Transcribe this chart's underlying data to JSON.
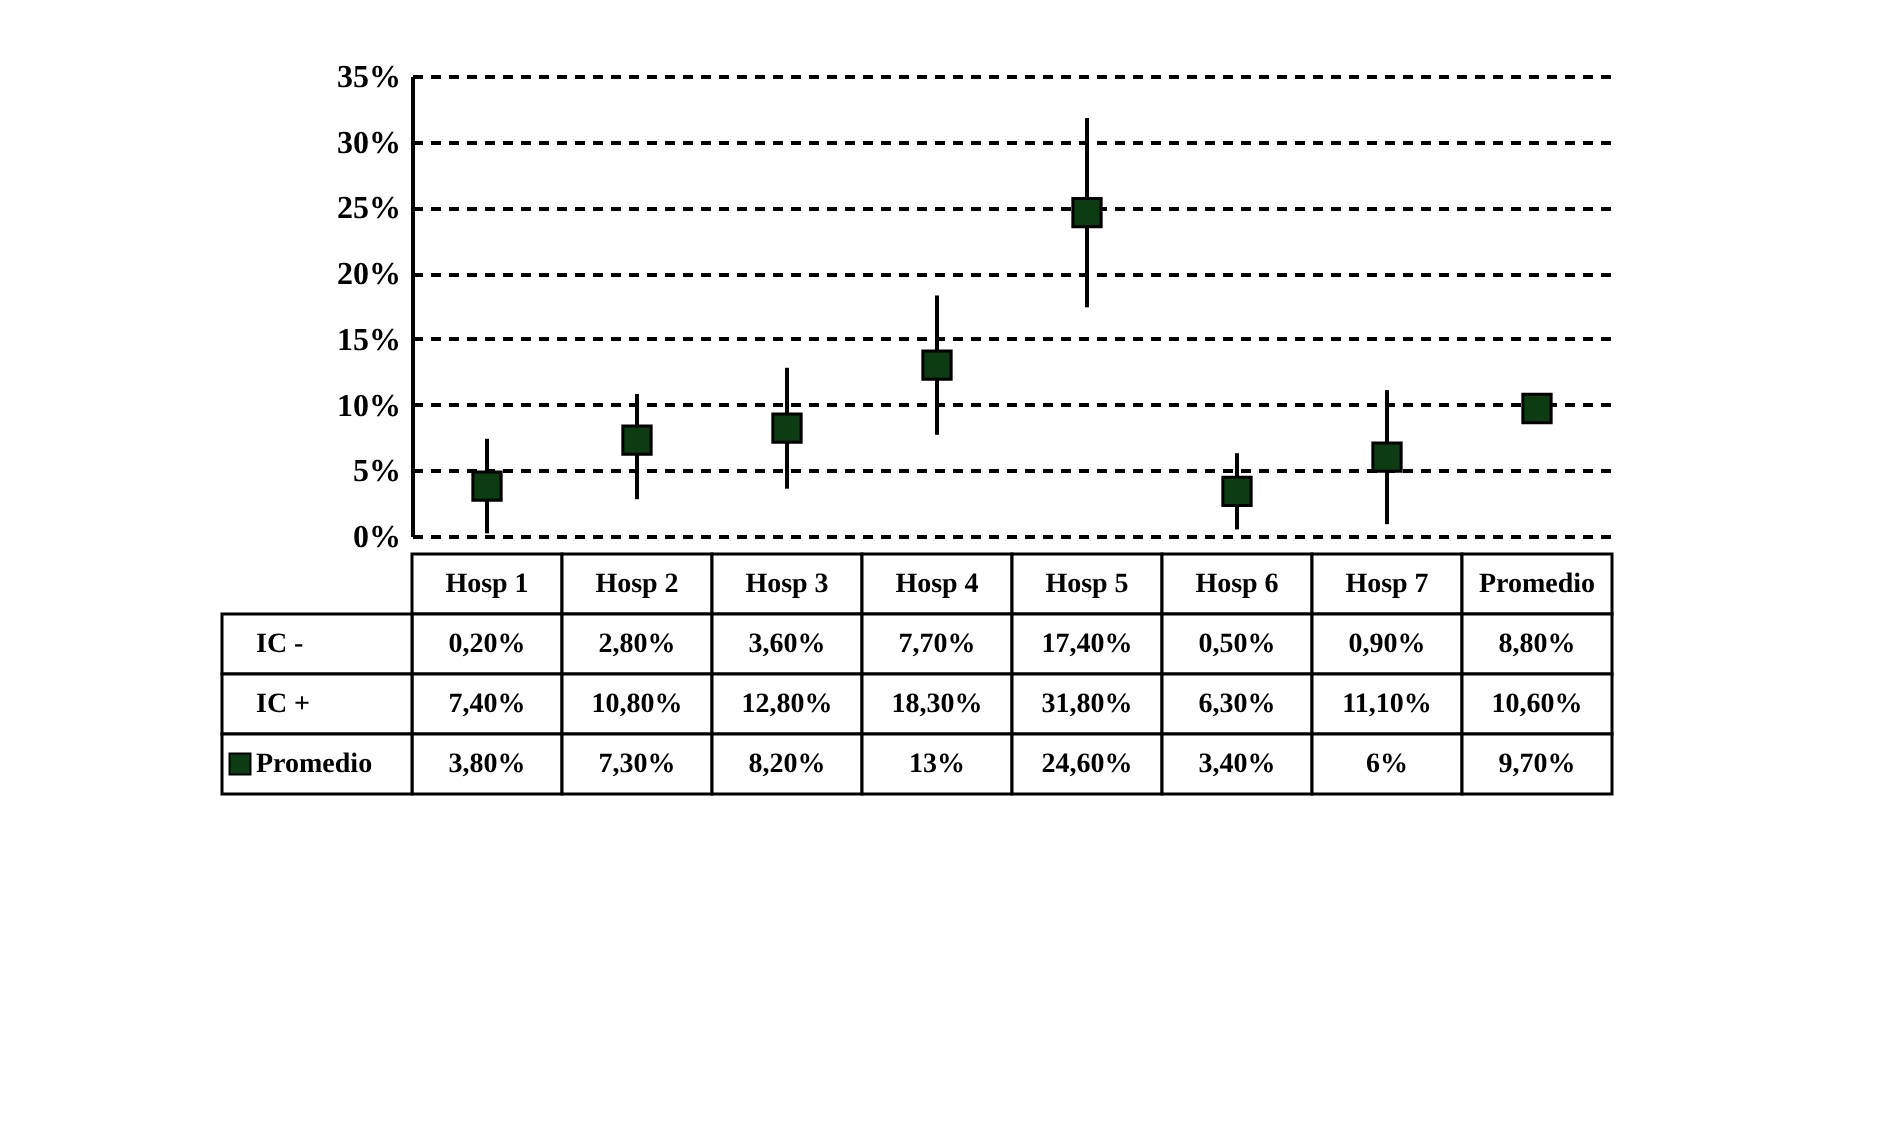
{
  "chart_data": {
    "type": "scatter",
    "categories": [
      "Hosp 1",
      "Hosp 2",
      "Hosp 3",
      "Hosp 4",
      "Hosp 5",
      "Hosp 6",
      "Hosp 7",
      "Promedio"
    ],
    "series": [
      {
        "name": "Promedio",
        "color": "#0d3b12",
        "values": [
          3.8,
          7.3,
          8.2,
          13,
          24.6,
          3.4,
          6,
          9.7
        ],
        "errors": [
          [
            0.2,
            7.4
          ],
          [
            2.8,
            10.8
          ],
          [
            3.6,
            12.8
          ],
          [
            7.7,
            18.3
          ],
          [
            17.4,
            31.8
          ],
          [
            0.5,
            6.3
          ],
          [
            0.9,
            11.1
          ],
          [
            8.8,
            10.6
          ]
        ],
        "value_labels": [
          "3,80%",
          "7,30%",
          "8,20%",
          "13%",
          "24,60%",
          "3,40%",
          "6%",
          "9,70%"
        ]
      }
    ],
    "ylim": [
      0,
      35
    ],
    "yticks": [
      {
        "value": 0,
        "label": "0%"
      },
      {
        "value": 5,
        "label": "5%"
      },
      {
        "value": 10,
        "label": "10%"
      },
      {
        "value": 15,
        "label": "15%"
      },
      {
        "value": 20,
        "label": "20%"
      },
      {
        "value": 25,
        "label": "25%"
      },
      {
        "value": 30,
        "label": "30%"
      },
      {
        "value": 35,
        "label": "35%"
      }
    ],
    "grid": "y",
    "marker": "square",
    "legend": "bottom left",
    "annotations": [
      "IC -",
      "IC +",
      "0,20%",
      "2,80%",
      "3,60%",
      "7,70%",
      "17,40%",
      "0,50%",
      "0,90%",
      "8,80%",
      "7,40%",
      "10,80%",
      "12,80%",
      "18,30%",
      "31,80%",
      "6,30%",
      "11,10%",
      "10,60%"
    ]
  }
}
